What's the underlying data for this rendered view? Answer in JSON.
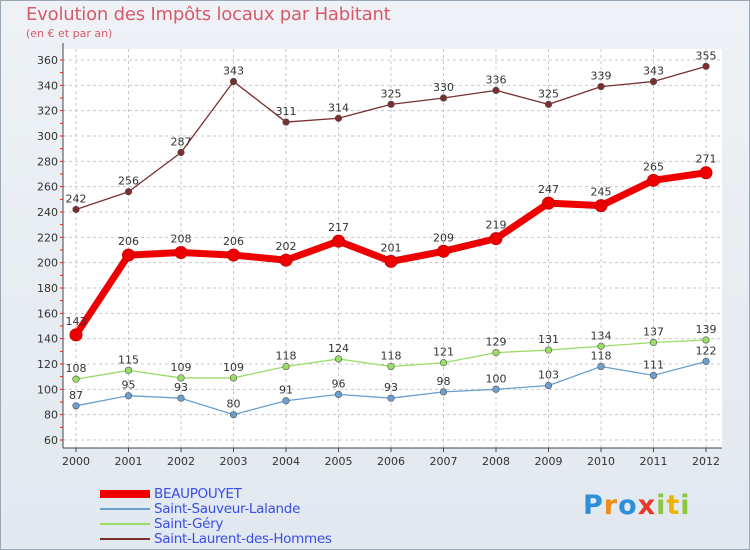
{
  "chart_data": {
    "type": "line",
    "title": "Evolution des Impôts locaux par Habitant",
    "subtitle": "(en € et par an)",
    "categories": [
      "2000",
      "2001",
      "2002",
      "2003",
      "2004",
      "2005",
      "2006",
      "2007",
      "2008",
      "2009",
      "2010",
      "2011",
      "2012"
    ],
    "ylim": [
      60,
      360
    ],
    "yticks": [
      60,
      80,
      100,
      120,
      140,
      160,
      180,
      200,
      220,
      240,
      260,
      280,
      300,
      320,
      340,
      360
    ],
    "grid": true,
    "legend_position": "bottom-left",
    "series": [
      {
        "name": "BEAUPOUYET",
        "color": "#ee0000",
        "weight": "thick",
        "values": [
          143,
          206,
          208,
          206,
          202,
          217,
          201,
          209,
          219,
          247,
          245,
          265,
          271
        ]
      },
      {
        "name": "Saint-Sauveur-Lalande",
        "color": "#6b9fcf",
        "weight": "thin",
        "values": [
          87,
          95,
          93,
          80,
          91,
          96,
          93,
          98,
          100,
          103,
          118,
          111,
          122
        ]
      },
      {
        "name": "Saint-Géry",
        "color": "#99dd66",
        "weight": "thin",
        "values": [
          108,
          115,
          109,
          109,
          118,
          124,
          118,
          121,
          129,
          131,
          134,
          137,
          139
        ]
      },
      {
        "name": "Saint-Laurent-des-Hommes",
        "color": "#7a2e2e",
        "weight": "thin",
        "values": [
          242,
          256,
          287,
          343,
          311,
          314,
          325,
          330,
          336,
          325,
          339,
          343,
          355
        ]
      }
    ]
  },
  "brand": {
    "letters": [
      "P",
      "r",
      "o",
      "x",
      "i",
      "t",
      "i"
    ],
    "colors": [
      "#2d8fd8",
      "#f08a1c",
      "#2d8fd8",
      "#e8382a",
      "#8cc63f",
      "#f0b400",
      "#8cc63f"
    ]
  }
}
